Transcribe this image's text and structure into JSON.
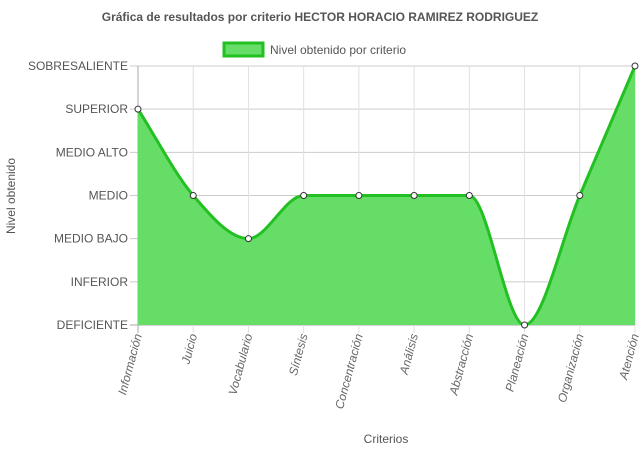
{
  "chart_data": {
    "type": "area",
    "title": "Gráfica de resultados por criterio HECTOR HORACIO RAMIREZ RODRIGUEZ",
    "xlabel": "Criterios",
    "ylabel": "Nivel obtenido",
    "y_levels": [
      "DEFICIENTE",
      "INFERIOR",
      "MEDIO BAJO",
      "MEDIO",
      "MEDIO ALTO",
      "SUPERIOR",
      "SOBRESALIENTE"
    ],
    "categories": [
      "Información",
      "Juicio",
      "Vocabulario",
      "Síntesis",
      "Concentración",
      "Análisis",
      "Abstracción",
      "Planeación",
      "Organización",
      "Atención"
    ],
    "series": [
      {
        "name": "Nivel obtenido por criterio",
        "values": [
          "SUPERIOR",
          "MEDIO",
          "MEDIO BAJO",
          "MEDIO",
          "MEDIO",
          "MEDIO",
          "MEDIO",
          "DEFICIENTE",
          "MEDIO",
          "SOBRESALIENTE"
        ],
        "fill_color": "#66dd66",
        "line_color": "#22c022"
      }
    ],
    "legend_position": "top",
    "grid": true
  }
}
